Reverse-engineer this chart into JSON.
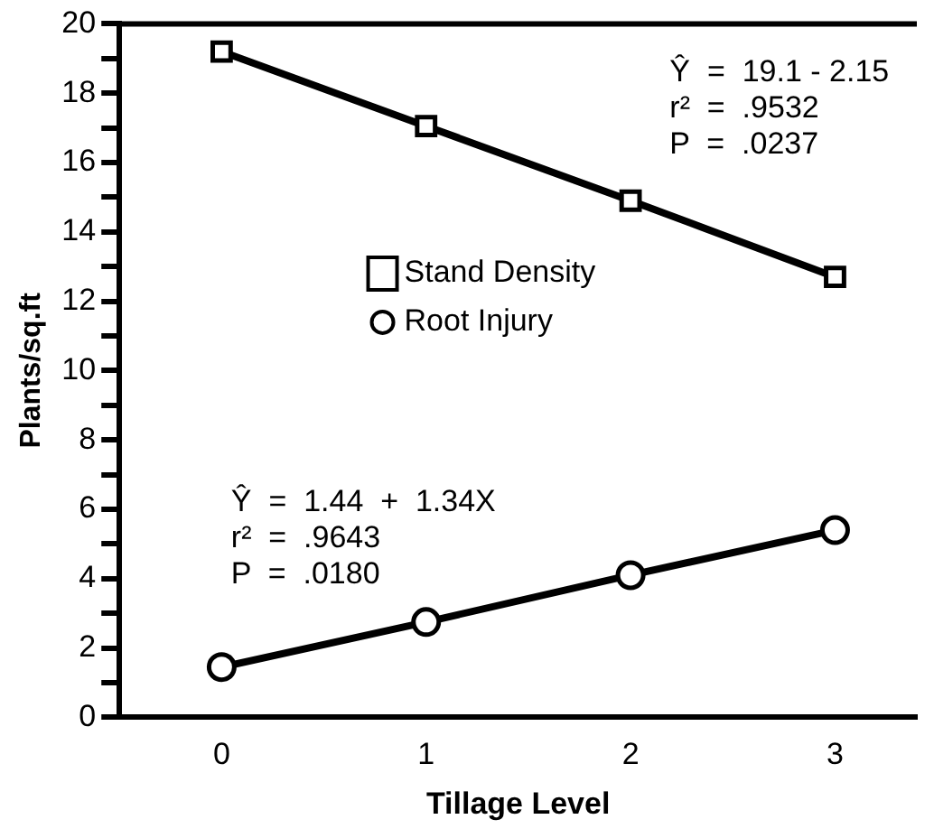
{
  "chart_data": {
    "type": "line",
    "xlabel": "Tillage Level",
    "ylabel": "Plants/sq.ft",
    "x": [
      0,
      1,
      2,
      3
    ],
    "series": [
      {
        "name": "Stand Density",
        "color": "#000000",
        "marker": "square",
        "values": [
          19.2,
          17.05,
          14.9,
          12.7
        ]
      },
      {
        "name": "Root Injury",
        "color": "#000000",
        "marker": "circle",
        "values": [
          1.45,
          2.75,
          4.1,
          5.4
        ]
      }
    ],
    "xlim": [
      -0.5,
      3.4
    ],
    "xticks": [
      0,
      1,
      2,
      3
    ],
    "ylim": [
      0,
      20
    ],
    "yticks": [
      0,
      {
        "value": 1,
        "label": null
      },
      2,
      {
        "value": 3,
        "label": null
      },
      4,
      {
        "value": 5,
        "label": null
      },
      6,
      {
        "value": 7,
        "label": null
      },
      8,
      {
        "value": 9,
        "label": null
      },
      10,
      {
        "value": 11,
        "label": null
      },
      12,
      {
        "value": 13,
        "label": null
      },
      14,
      {
        "value": 15,
        "label": null
      },
      16,
      {
        "value": 17,
        "label": null
      },
      18,
      {
        "value": 19,
        "label": null
      },
      20
    ],
    "grid": false,
    "legend": "left",
    "line_style": "solid",
    "annotations": [
      "Ŷ  =  19.1 - 2.15\nr²  =  .9532\nP  =  .0237",
      "Ŷ  =  1.44  +  1.34X\nr²  =  .9643\nP  =  .0180"
    ]
  }
}
